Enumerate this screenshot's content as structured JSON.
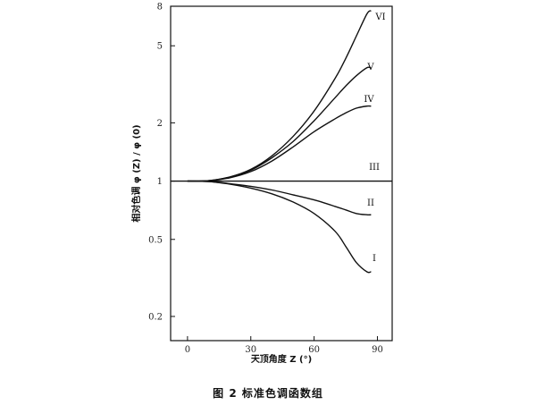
{
  "caption": "图 2   标准色调函数组",
  "chart_data": {
    "type": "line",
    "xlabel": "天顶角度 Z (°)",
    "ylabel": "相对色调 φ (Z) / φ (0)",
    "xlim": [
      -8,
      97
    ],
    "ylim": [
      0.15,
      8
    ],
    "yscale": "log",
    "x_ticks": [
      0,
      30,
      60,
      90
    ],
    "y_ticks": [
      0.2,
      0.5,
      1,
      2,
      5,
      8
    ],
    "x_tick_labels": [
      "0",
      "30",
      "60",
      "90"
    ],
    "y_tick_labels": [
      "0.2",
      "0.5",
      "1",
      "2",
      "5",
      "8"
    ],
    "x": [
      0,
      10,
      20,
      30,
      40,
      50,
      60,
      70,
      75,
      80,
      85,
      87
    ],
    "series": [
      {
        "name": "VI",
        "values": [
          1,
          1.005,
          1.05,
          1.15,
          1.35,
          1.7,
          2.3,
          3.4,
          4.3,
          5.6,
          7.3,
          7.6
        ]
      },
      {
        "name": "V",
        "values": [
          1,
          1.005,
          1.05,
          1.14,
          1.32,
          1.6,
          2.05,
          2.7,
          3.1,
          3.5,
          3.85,
          3.85
        ]
      },
      {
        "name": "IV",
        "values": [
          1,
          1.004,
          1.04,
          1.12,
          1.27,
          1.5,
          1.8,
          2.1,
          2.25,
          2.38,
          2.44,
          2.44
        ]
      },
      {
        "name": "III",
        "values": [
          1,
          1,
          1,
          1,
          1,
          1,
          1,
          1,
          1,
          1,
          1,
          1
        ]
      },
      {
        "name": "II",
        "values": [
          1,
          0.995,
          0.97,
          0.94,
          0.9,
          0.85,
          0.8,
          0.74,
          0.71,
          0.68,
          0.67,
          0.67
        ]
      },
      {
        "name": "I",
        "values": [
          1,
          0.995,
          0.965,
          0.92,
          0.86,
          0.78,
          0.68,
          0.55,
          0.46,
          0.38,
          0.34,
          0.34
        ]
      }
    ]
  }
}
